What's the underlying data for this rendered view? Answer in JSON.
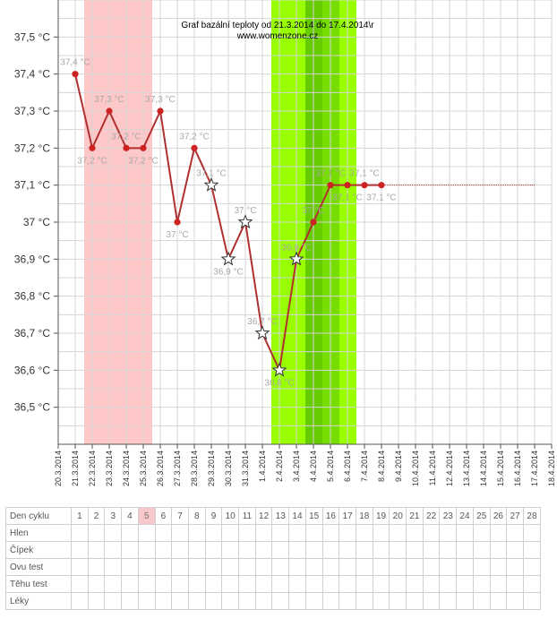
{
  "chart_data": {
    "type": "line",
    "title": "Graf bazální teploty od 21.3.2014 do 17.4.2014\\r",
    "subtitle": "www.womenzone.cz",
    "ylim": [
      36.4,
      37.6
    ],
    "y_ticks": [
      "37,5 °C",
      "37,4 °C",
      "37,3 °C",
      "37,2 °C",
      "37,1 °C",
      "37 °C",
      "36,9 °C",
      "36,8 °C",
      "36,7 °C",
      "36,6 °C",
      "36,5 °C"
    ],
    "y_tick_values": [
      37.5,
      37.4,
      37.3,
      37.2,
      37.1,
      37.0,
      36.9,
      36.8,
      36.7,
      36.6,
      36.5
    ],
    "x_ticks": [
      "20.3.2014",
      "21.3.2014",
      "22.3.2014",
      "23.3.2014",
      "24.3.2014",
      "25.3.2014",
      "26.3.2014",
      "27.3.2014",
      "28.3.2014",
      "29.3.2014",
      "30.3.2014",
      "31.3.2014",
      "1.4.2014",
      "2.4.2014",
      "3.4.2014",
      "4.4.2014",
      "5.4.2014",
      "6.4.2014",
      "7.4.2014",
      "8.4.2014",
      "9.4.2014",
      "10.4.2014",
      "11.4.2014",
      "12.4.2014",
      "13.4.2014",
      "14.4.2014",
      "15.4.2014",
      "16.4.2014",
      "17.4.2014",
      "18.4.2014"
    ],
    "series": [
      {
        "x": [
          "21.3.2014",
          "22.3.2014",
          "23.3.2014",
          "24.3.2014",
          "25.3.2014",
          "26.3.2014",
          "27.3.2014",
          "28.3.2014",
          "29.3.2014",
          "30.3.2014",
          "31.3.2014",
          "1.4.2014",
          "2.4.2014",
          "3.4.2014",
          "4.4.2014",
          "5.4.2014",
          "6.4.2014",
          "7.4.2014",
          "8.4.2014"
        ],
        "values": [
          37.4,
          37.2,
          37.3,
          37.2,
          37.2,
          37.3,
          37.0,
          37.2,
          37.1,
          36.9,
          37.0,
          36.7,
          36.6,
          36.9,
          37.0,
          37.1,
          37.1,
          37.1,
          37.1
        ],
        "markers": [
          "dot",
          "dot",
          "dot",
          "dot",
          "dot",
          "dot",
          "dot",
          "dot",
          "star",
          "star",
          "star",
          "star",
          "star",
          "star",
          "dot",
          "dot",
          "dot",
          "dot",
          "dot"
        ],
        "labels": [
          "37,4 °C",
          "37,2 °C",
          "37,3 °C",
          "37,2 °C",
          "37,2 °C",
          "37,3 °C",
          "37 °C",
          "37,2 °C",
          "37,1 °C",
          "36,9 °C",
          "37 °C",
          "36,7 °C",
          "36,6 °C",
          "36,9 °C",
          "37 °C",
          "37,1 °C",
          "37,1 °C",
          "37,1 °C",
          "37,1 °C"
        ],
        "label_pos": [
          "above",
          "below",
          "above",
          "above",
          "below",
          "above",
          "below",
          "above",
          "above",
          "below",
          "above",
          "above",
          "below",
          "above",
          "above",
          "above",
          "below",
          "above",
          "below"
        ]
      }
    ],
    "reference_line": {
      "value": 37.1,
      "from": "8.4.2014",
      "to": "17.4.2014"
    },
    "bands": [
      {
        "from": "21.3.2014",
        "to": "25.3.2014",
        "color": "#ffc8c8"
      },
      {
        "from": "1.4.2014",
        "to": "6.4.2014",
        "color": "#99ff00"
      },
      {
        "from": "3.4.2014",
        "to": "4.4.2014",
        "color": "#66cc00"
      },
      {
        "from": "4.4.2014",
        "to": "5.4.2014",
        "color": "#77dd00"
      }
    ],
    "grid": true,
    "colors": {
      "line": "#b03030",
      "marker": "#cc2222",
      "label": "#a8a8a8"
    }
  },
  "table": {
    "header_label": "Den cyklu",
    "days": [
      "1",
      "2",
      "3",
      "4",
      "5",
      "6",
      "7",
      "8",
      "9",
      "10",
      "11",
      "12",
      "13",
      "14",
      "15",
      "16",
      "17",
      "18",
      "19",
      "20",
      "21",
      "22",
      "23",
      "24",
      "25",
      "26",
      "27",
      "28"
    ],
    "highlight_day": "5",
    "rows": [
      "Hlen",
      "Čípek",
      "Ovu test",
      "Těhu test",
      "Léky"
    ]
  }
}
